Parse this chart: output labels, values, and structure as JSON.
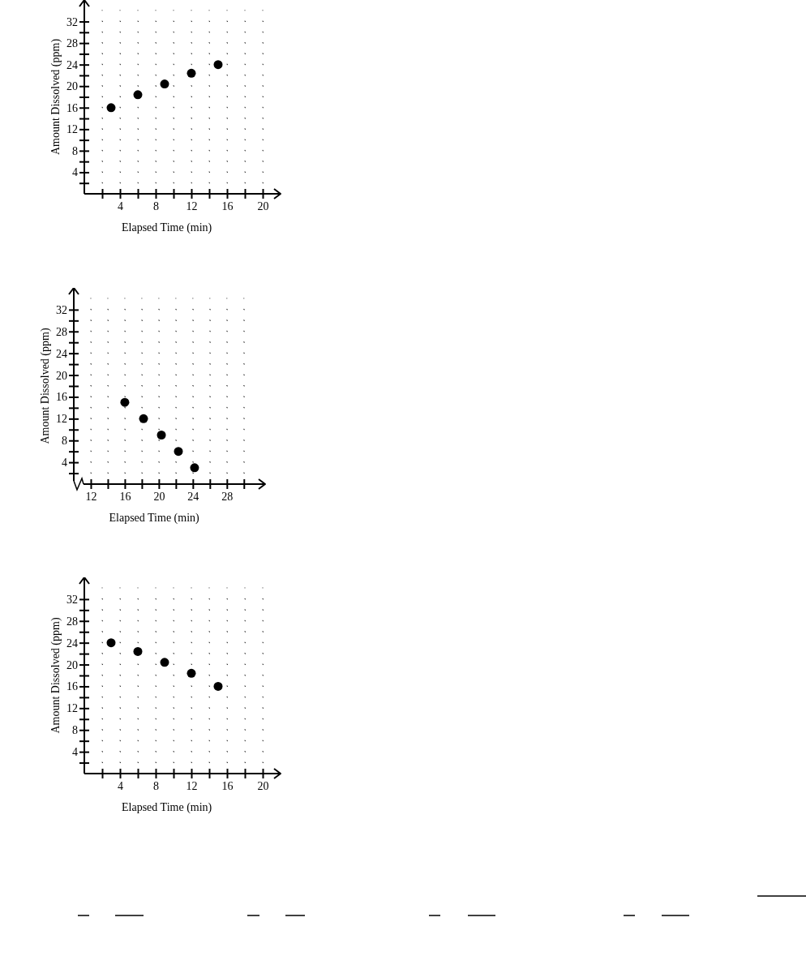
{
  "chart_data": [
    {
      "type": "scatter",
      "xlabel": "Elapsed Time (min)",
      "ylabel": "Amount Dissolved (ppm)",
      "x": [
        3,
        6,
        9,
        12,
        15
      ],
      "values": [
        16,
        18.4,
        20.4,
        22.4,
        24
      ],
      "color": "#000000",
      "marker": "circle",
      "grid": true,
      "xlim": [
        0,
        22
      ],
      "ylim": [
        0,
        36
      ],
      "xticks": [
        {
          "value": 2,
          "label": null
        },
        4,
        {
          "value": 6,
          "label": null
        },
        8,
        {
          "value": 10,
          "label": null
        },
        12,
        {
          "value": 14,
          "label": null
        },
        16,
        {
          "value": 18,
          "label": null
        },
        20
      ],
      "yticks": [
        {
          "value": 2,
          "label": null
        },
        4,
        {
          "value": 6,
          "label": null
        },
        8,
        {
          "value": 10,
          "label": null
        },
        12,
        {
          "value": 14,
          "label": null
        },
        16,
        {
          "value": 18,
          "label": null
        },
        20,
        {
          "value": 22,
          "label": null
        },
        24,
        {
          "value": 26,
          "label": null
        },
        28,
        {
          "value": 30,
          "label": null
        },
        32
      ]
    },
    {
      "type": "scatter",
      "xlabel": "Elapsed Time (min)",
      "ylabel": "Amount Dissolved (ppm)",
      "x": [
        16,
        18.2,
        20.3,
        22.3,
        24.2
      ],
      "values": [
        15,
        12,
        9,
        6,
        3
      ],
      "color": "#000000",
      "marker": "circle",
      "grid": true,
      "xlim": [
        10,
        32.5
      ],
      "ylim": [
        0,
        36
      ],
      "xticks": [
        12,
        {
          "value": 14,
          "label": null
        },
        16,
        {
          "value": 18,
          "label": null
        },
        20,
        {
          "value": 22,
          "label": null
        },
        24,
        {
          "value": 26,
          "label": null
        },
        28,
        {
          "value": 30,
          "label": null
        }
      ],
      "yticks": [
        {
          "value": 2,
          "label": null
        },
        4,
        {
          "value": 6,
          "label": null
        },
        8,
        {
          "value": 10,
          "label": null
        },
        12,
        {
          "value": 14,
          "label": null
        },
        16,
        {
          "value": 18,
          "label": null
        },
        20,
        {
          "value": 22,
          "label": null
        },
        24,
        {
          "value": 26,
          "label": null
        },
        28,
        {
          "value": 30,
          "label": null
        },
        32
      ]
    },
    {
      "type": "scatter",
      "xlabel": "Elapsed Time (min)",
      "ylabel": "Amount Dissolved (ppm)",
      "x": [
        3,
        6,
        9,
        12,
        15
      ],
      "values": [
        24,
        22.4,
        20.4,
        18.4,
        16
      ],
      "color": "#000000",
      "marker": "circle",
      "grid": true,
      "xlim": [
        0,
        22
      ],
      "ylim": [
        0,
        36
      ],
      "xticks": [
        {
          "value": 2,
          "label": null
        },
        4,
        {
          "value": 6,
          "label": null
        },
        8,
        {
          "value": 10,
          "label": null
        },
        12,
        {
          "value": 14,
          "label": null
        },
        16,
        {
          "value": 18,
          "label": null
        },
        20
      ],
      "yticks": [
        {
          "value": 2,
          "label": null
        },
        4,
        {
          "value": 6,
          "label": null
        },
        8,
        {
          "value": 10,
          "label": null
        },
        12,
        {
          "value": 14,
          "label": null
        },
        16,
        {
          "value": 18,
          "label": null
        },
        20,
        {
          "value": 22,
          "label": null
        },
        24,
        {
          "value": 26,
          "label": null
        },
        28,
        {
          "value": 30,
          "label": null
        },
        32
      ]
    }
  ]
}
